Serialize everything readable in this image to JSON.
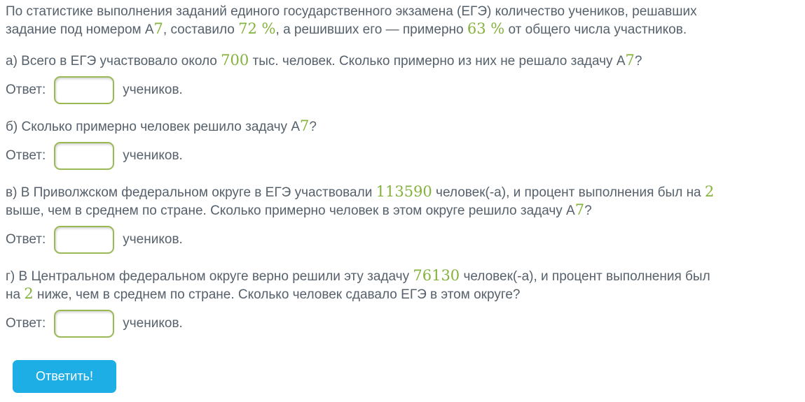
{
  "colors": {
    "text": "#56616c",
    "accent_green": "#84b23d",
    "input_border": "#9ab854",
    "button_blue": "#1caee4",
    "button_text": "#ffffff",
    "page_bg": "#ffffff"
  },
  "intro": {
    "lines": [
      [
        {
          "t": "По статистике выполнения заданий единого государственного экзамена (ЕГЭ) количество учеников, решавших"
        }
      ],
      [
        {
          "t": "задание под номером А"
        },
        {
          "t": "7",
          "n": 1
        },
        {
          "t": ", составило "
        },
        {
          "t": "72 %",
          "n": 1
        },
        {
          "t": ", а решивших его — примерно "
        },
        {
          "t": "63 %",
          "n": 1
        },
        {
          "t": " от общего числа участников."
        }
      ]
    ]
  },
  "questions": [
    {
      "id": "a",
      "lines": [
        [
          {
            "t": "а) Всего в ЕГЭ участвовало около "
          },
          {
            "t": "700",
            "n": 1
          },
          {
            "t": " тыс. человек. Сколько примерно из них не решало задачу А"
          },
          {
            "t": "7",
            "n": 1
          },
          {
            "t": "?"
          }
        ]
      ],
      "answer": {
        "label": "Ответ:",
        "value": "",
        "suffix": "учеников."
      }
    },
    {
      "id": "b",
      "lines": [
        [
          {
            "t": "б) Сколько примерно человек решило задачу А"
          },
          {
            "t": "7",
            "n": 1
          },
          {
            "t": "?"
          }
        ]
      ],
      "answer": {
        "label": "Ответ:",
        "value": "",
        "suffix": "учеников."
      }
    },
    {
      "id": "v",
      "lines": [
        [
          {
            "t": "в) В Приволжском федеральном округе в ЕГЭ участвовали "
          },
          {
            "t": "113590",
            "n": 1
          },
          {
            "t": " человек(-а), и процент выполнения был на "
          },
          {
            "t": "2",
            "n": 1
          }
        ],
        [
          {
            "t": "выше, чем в среднем по стране. Сколько примерно человек в этом округе решило задачу А"
          },
          {
            "t": "7",
            "n": 1
          },
          {
            "t": "?"
          }
        ]
      ],
      "answer": {
        "label": "Ответ:",
        "value": "",
        "suffix": "учеников."
      }
    },
    {
      "id": "g",
      "lines": [
        [
          {
            "t": "г) В Центральном федеральном округе верно решили эту задачу "
          },
          {
            "t": "76130",
            "n": 1
          },
          {
            "t": " человек(-а), и процент выполнения был"
          }
        ],
        [
          {
            "t": "на "
          },
          {
            "t": "2",
            "n": 1
          },
          {
            "t": " ниже, чем в среднем по стране. Сколько человек сдавало ЕГЭ в этом округе?"
          }
        ]
      ],
      "answer": {
        "label": "Ответ:",
        "value": "",
        "suffix": "учеников."
      }
    }
  ],
  "submit": {
    "label": "Ответить!"
  }
}
